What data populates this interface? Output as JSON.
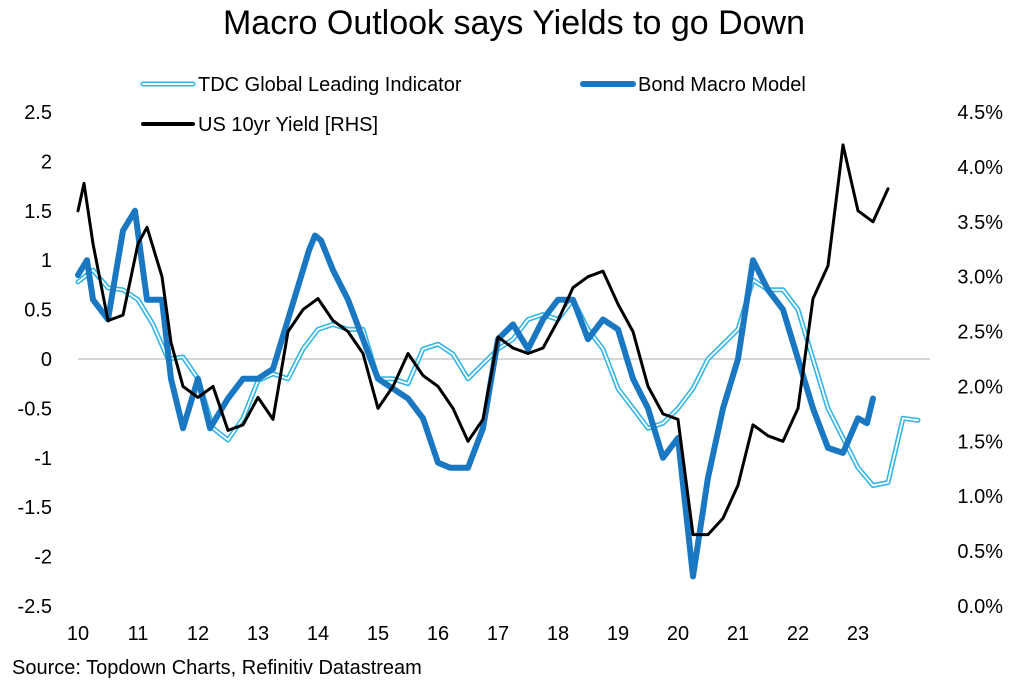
{
  "chart_data": {
    "type": "line",
    "title": "Macro Outlook says Yields to go Down",
    "source": "Source: Topdown Charts, Refinitiv Datastream",
    "legend_placement": "top",
    "grid": false,
    "zero_line": true,
    "x_axis": {
      "ticks": [
        10,
        11,
        12,
        13,
        14,
        15,
        16,
        17,
        18,
        19,
        20,
        21,
        22,
        23
      ],
      "labels": [
        "10",
        "11",
        "12",
        "13",
        "14",
        "15",
        "16",
        "17",
        "18",
        "19",
        "20",
        "21",
        "22",
        "23"
      ],
      "range": [
        2010.0,
        2024.0
      ]
    },
    "y_left": {
      "range": [
        -2.5,
        2.5
      ],
      "ticks": [
        -2.5,
        -2,
        -1.5,
        -1,
        -0.5,
        0,
        0.5,
        1,
        1.5,
        2,
        2.5
      ],
      "labels": [
        "-2.5",
        "-2",
        "-1.5",
        "-1",
        "-0.5",
        "0",
        "0.5",
        "1",
        "1.5",
        "2",
        "2.5"
      ]
    },
    "y_right": {
      "range": [
        0.0,
        4.5
      ],
      "ticks": [
        0.0,
        0.5,
        1.0,
        1.5,
        2.0,
        2.5,
        3.0,
        3.5,
        4.0,
        4.5
      ],
      "labels": [
        "0.0%",
        "0.5%",
        "1.0%",
        "1.5%",
        "2.0%",
        "2.5%",
        "3.0%",
        "3.5%",
        "4.0%",
        "4.5%"
      ]
    },
    "series": [
      {
        "name": "TDC Global Leading Indicator",
        "axis": "left",
        "color": "#33b5e5",
        "style": "double",
        "points": [
          [
            2010.0,
            0.78
          ],
          [
            2010.25,
            0.9
          ],
          [
            2010.5,
            0.72
          ],
          [
            2010.75,
            0.7
          ],
          [
            2011.0,
            0.6
          ],
          [
            2011.25,
            0.35
          ],
          [
            2011.5,
            0.0
          ],
          [
            2011.75,
            0.02
          ],
          [
            2012.0,
            -0.2
          ],
          [
            2012.25,
            -0.7
          ],
          [
            2012.5,
            -0.82
          ],
          [
            2012.75,
            -0.6
          ],
          [
            2013.0,
            -0.22
          ],
          [
            2013.25,
            -0.15
          ],
          [
            2013.5,
            -0.2
          ],
          [
            2013.75,
            0.1
          ],
          [
            2014.0,
            0.3
          ],
          [
            2014.25,
            0.35
          ],
          [
            2014.5,
            0.3
          ],
          [
            2014.75,
            0.3
          ],
          [
            2015.0,
            -0.2
          ],
          [
            2015.25,
            -0.2
          ],
          [
            2015.5,
            -0.25
          ],
          [
            2015.75,
            0.1
          ],
          [
            2016.0,
            0.15
          ],
          [
            2016.25,
            0.05
          ],
          [
            2016.5,
            -0.2
          ],
          [
            2016.75,
            -0.05
          ],
          [
            2017.0,
            0.1
          ],
          [
            2017.25,
            0.2
          ],
          [
            2017.5,
            0.4
          ],
          [
            2017.75,
            0.45
          ],
          [
            2018.0,
            0.4
          ],
          [
            2018.25,
            0.6
          ],
          [
            2018.5,
            0.3
          ],
          [
            2018.75,
            0.1
          ],
          [
            2019.0,
            -0.3
          ],
          [
            2019.25,
            -0.5
          ],
          [
            2019.5,
            -0.7
          ],
          [
            2019.75,
            -0.65
          ],
          [
            2020.0,
            -0.5
          ],
          [
            2020.25,
            -0.3
          ],
          [
            2020.5,
            0.0
          ],
          [
            2020.75,
            0.15
          ],
          [
            2021.0,
            0.3
          ],
          [
            2021.25,
            0.8
          ],
          [
            2021.5,
            0.7
          ],
          [
            2021.75,
            0.7
          ],
          [
            2022.0,
            0.5
          ],
          [
            2022.25,
            0.0
          ],
          [
            2022.5,
            -0.5
          ],
          [
            2022.75,
            -0.8
          ],
          [
            2023.0,
            -1.1
          ],
          [
            2023.25,
            -1.28
          ],
          [
            2023.5,
            -1.25
          ],
          [
            2023.75,
            -0.6
          ],
          [
            2024.0,
            -0.62
          ]
        ]
      },
      {
        "name": "Bond Macro Model",
        "axis": "left",
        "color": "#1a78c2",
        "style": "thick",
        "points": [
          [
            2010.0,
            0.85
          ],
          [
            2010.15,
            1.0
          ],
          [
            2010.25,
            0.6
          ],
          [
            2010.5,
            0.4
          ],
          [
            2010.75,
            1.3
          ],
          [
            2010.95,
            1.5
          ],
          [
            2011.15,
            0.6
          ],
          [
            2011.4,
            0.6
          ],
          [
            2011.55,
            -0.2
          ],
          [
            2011.75,
            -0.7
          ],
          [
            2012.0,
            -0.2
          ],
          [
            2012.2,
            -0.7
          ],
          [
            2012.5,
            -0.4
          ],
          [
            2012.75,
            -0.2
          ],
          [
            2013.0,
            -0.2
          ],
          [
            2013.25,
            -0.1
          ],
          [
            2013.6,
            0.6
          ],
          [
            2013.85,
            1.1
          ],
          [
            2013.95,
            1.25
          ],
          [
            2014.05,
            1.2
          ],
          [
            2014.25,
            0.9
          ],
          [
            2014.5,
            0.6
          ],
          [
            2014.75,
            0.2
          ],
          [
            2015.0,
            -0.2
          ],
          [
            2015.25,
            -0.3
          ],
          [
            2015.5,
            -0.4
          ],
          [
            2015.75,
            -0.6
          ],
          [
            2016.0,
            -1.05
          ],
          [
            2016.2,
            -1.1
          ],
          [
            2016.5,
            -1.1
          ],
          [
            2016.75,
            -0.7
          ],
          [
            2017.0,
            0.2
          ],
          [
            2017.25,
            0.35
          ],
          [
            2017.5,
            0.1
          ],
          [
            2017.75,
            0.4
          ],
          [
            2018.0,
            0.6
          ],
          [
            2018.25,
            0.6
          ],
          [
            2018.5,
            0.2
          ],
          [
            2018.75,
            0.4
          ],
          [
            2019.0,
            0.3
          ],
          [
            2019.25,
            -0.2
          ],
          [
            2019.5,
            -0.5
          ],
          [
            2019.75,
            -1.0
          ],
          [
            2020.0,
            -0.8
          ],
          [
            2020.25,
            -2.2
          ],
          [
            2020.5,
            -1.2
          ],
          [
            2020.75,
            -0.5
          ],
          [
            2021.0,
            0.0
          ],
          [
            2021.25,
            1.0
          ],
          [
            2021.5,
            0.7
          ],
          [
            2021.75,
            0.5
          ],
          [
            2022.0,
            0.0
          ],
          [
            2022.25,
            -0.5
          ],
          [
            2022.5,
            -0.9
          ],
          [
            2022.75,
            -0.95
          ],
          [
            2023.0,
            -0.6
          ],
          [
            2023.15,
            -0.65
          ],
          [
            2023.25,
            -0.4
          ]
        ]
      },
      {
        "name": "US 10yr Yield [RHS]",
        "axis": "right",
        "color": "#000000",
        "style": "medium",
        "points": [
          [
            2010.0,
            3.6
          ],
          [
            2010.1,
            3.85
          ],
          [
            2010.25,
            3.3
          ],
          [
            2010.5,
            2.6
          ],
          [
            2010.75,
            2.65
          ],
          [
            2011.0,
            3.3
          ],
          [
            2011.15,
            3.45
          ],
          [
            2011.4,
            3.0
          ],
          [
            2011.55,
            2.4
          ],
          [
            2011.75,
            2.0
          ],
          [
            2012.0,
            1.9
          ],
          [
            2012.25,
            2.0
          ],
          [
            2012.5,
            1.6
          ],
          [
            2012.75,
            1.65
          ],
          [
            2013.0,
            1.9
          ],
          [
            2013.25,
            1.7
          ],
          [
            2013.5,
            2.5
          ],
          [
            2013.75,
            2.7
          ],
          [
            2014.0,
            2.8
          ],
          [
            2014.25,
            2.6
          ],
          [
            2014.5,
            2.5
          ],
          [
            2014.75,
            2.3
          ],
          [
            2015.0,
            1.8
          ],
          [
            2015.25,
            2.0
          ],
          [
            2015.5,
            2.3
          ],
          [
            2015.75,
            2.1
          ],
          [
            2016.0,
            2.0
          ],
          [
            2016.25,
            1.8
          ],
          [
            2016.5,
            1.5
          ],
          [
            2016.75,
            1.7
          ],
          [
            2017.0,
            2.45
          ],
          [
            2017.25,
            2.35
          ],
          [
            2017.5,
            2.3
          ],
          [
            2017.75,
            2.35
          ],
          [
            2018.0,
            2.6
          ],
          [
            2018.25,
            2.9
          ],
          [
            2018.5,
            3.0
          ],
          [
            2018.75,
            3.05
          ],
          [
            2019.0,
            2.75
          ],
          [
            2019.25,
            2.5
          ],
          [
            2019.5,
            2.0
          ],
          [
            2019.75,
            1.75
          ],
          [
            2020.0,
            1.7
          ],
          [
            2020.25,
            0.65
          ],
          [
            2020.5,
            0.65
          ],
          [
            2020.75,
            0.8
          ],
          [
            2021.0,
            1.1
          ],
          [
            2021.25,
            1.65
          ],
          [
            2021.5,
            1.55
          ],
          [
            2021.75,
            1.5
          ],
          [
            2022.0,
            1.8
          ],
          [
            2022.25,
            2.8
          ],
          [
            2022.5,
            3.1
          ],
          [
            2022.75,
            4.2
          ],
          [
            2023.0,
            3.6
          ],
          [
            2023.25,
            3.5
          ],
          [
            2023.5,
            3.8
          ]
        ]
      }
    ]
  }
}
